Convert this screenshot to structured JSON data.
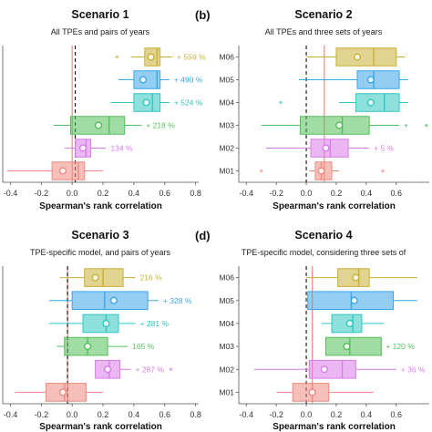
{
  "series_colors": [
    "#f08a80",
    "#da7bea",
    "#52c05a",
    "#2fc7c0",
    "#3aa6e8",
    "#c9b035"
  ],
  "chart_data": [
    {
      "type": "boxplot",
      "panel_label": "",
      "title": "Scenario 1",
      "subtitle": "All TPEs and pairs of years",
      "xlabel": "Spearman's rank correlation",
      "xlim": [
        -0.45,
        0.82
      ],
      "x_ticks": [
        "-0.4",
        "-0.2",
        "0.0",
        "0.2",
        "0.4",
        "0.6",
        "0.8"
      ],
      "y_tick_labels": [],
      "categories": [
        "M01",
        "M02",
        "M03",
        "M04",
        "M05",
        "M06"
      ],
      "reference_line_red": 0.0,
      "reference_line_dashed": 0.02,
      "boxes": [
        {
          "category": "M01",
          "whisker_low": -0.42,
          "q1": -0.13,
          "median": 0.04,
          "q3": 0.08,
          "whisker_high": 0.2,
          "mean": -0.06,
          "outliers": [],
          "annotation": ""
        },
        {
          "category": "M02",
          "whisker_low": -0.05,
          "q1": 0.02,
          "median": 0.09,
          "q3": 0.12,
          "whisker_high": 0.22,
          "mean": 0.07,
          "outliers": [],
          "annotation": "134 %"
        },
        {
          "category": "M03",
          "whisker_low": -0.12,
          "q1": -0.01,
          "median": 0.24,
          "q3": 0.34,
          "whisker_high": 0.45,
          "mean": 0.17,
          "outliers": [],
          "annotation": "+ 218 %"
        },
        {
          "category": "M04",
          "whisker_low": 0.25,
          "q1": 0.4,
          "median": 0.52,
          "q3": 0.57,
          "whisker_high": 0.63,
          "mean": 0.48,
          "outliers": [],
          "annotation": "+ 524 %"
        },
        {
          "category": "M05",
          "whisker_low": 0.3,
          "q1": 0.4,
          "median": 0.55,
          "q3": 0.57,
          "whisker_high": 0.63,
          "mean": 0.46,
          "outliers": [],
          "annotation": "+ 490 %"
        },
        {
          "category": "M06",
          "whisker_low": 0.38,
          "q1": 0.47,
          "median": 0.55,
          "q3": 0.57,
          "whisker_high": 0.65,
          "mean": 0.51,
          "outliers": [
            0.29
          ],
          "annotation": "+ 559 %"
        }
      ]
    },
    {
      "type": "boxplot",
      "panel_label": "(b)",
      "title": "Scenario 2",
      "subtitle": "All TPEs and three sets of years",
      "xlabel": "Spearman's rank correlation",
      "xlim": [
        -0.45,
        0.82
      ],
      "x_ticks": [
        "-0.4",
        "-0.2",
        "0.0",
        "0.2",
        "0.4",
        "0.6"
      ],
      "y_tick_labels": [
        "M01",
        "M02",
        "M03",
        "M04",
        "M05",
        "M06"
      ],
      "categories": [
        "M01",
        "M02",
        "M03",
        "M04",
        "M05",
        "M06"
      ],
      "reference_line_red": 0.12,
      "reference_line_dashed": 0.0,
      "boxes": [
        {
          "category": "M01",
          "whisker_low": 0.02,
          "q1": 0.06,
          "median": 0.1,
          "q3": 0.17,
          "whisker_high": 0.22,
          "mean": 0.1,
          "outliers": [
            -0.3,
            0.51
          ],
          "annotation": ""
        },
        {
          "category": "M02",
          "whisker_low": -0.27,
          "q1": 0.03,
          "median": 0.16,
          "q3": 0.28,
          "whisker_high": 0.42,
          "mean": 0.13,
          "outliers": [],
          "annotation": "+ 5 %"
        },
        {
          "category": "M03",
          "whisker_low": -0.3,
          "q1": -0.04,
          "median": 0.24,
          "q3": 0.42,
          "whisker_high": 0.62,
          "mean": 0.22,
          "outliers": [
            0.8
          ],
          "annotation": "+"
        },
        {
          "category": "M04",
          "whisker_low": 0.22,
          "q1": 0.33,
          "median": 0.52,
          "q3": 0.62,
          "whisker_high": 0.68,
          "mean": 0.43,
          "outliers": [
            -0.17
          ],
          "annotation": ""
        },
        {
          "category": "M05",
          "whisker_low": -0.05,
          "q1": 0.34,
          "median": 0.45,
          "q3": 0.62,
          "whisker_high": 0.68,
          "mean": 0.43,
          "outliers": [],
          "annotation": ""
        },
        {
          "category": "M06",
          "whisker_low": 0.0,
          "q1": 0.2,
          "median": 0.45,
          "q3": 0.6,
          "whisker_high": 0.66,
          "mean": 0.34,
          "outliers": [],
          "annotation": ""
        }
      ]
    },
    {
      "type": "boxplot",
      "panel_label": "",
      "title": "Scenario 3",
      "subtitle": "TPE-specific model, and pairs of years",
      "xlabel": "Spearman's rank correlation",
      "xlim": [
        -0.45,
        0.82
      ],
      "x_ticks": [
        "-0.4",
        "-0.2",
        "0.0",
        "0.2",
        "0.4",
        "0.6",
        "0.8"
      ],
      "y_tick_labels": [],
      "categories": [
        "M01",
        "M02",
        "M03",
        "M04",
        "M05",
        "M06"
      ],
      "reference_line_red": -0.03,
      "reference_line_dashed": -0.03,
      "boxes": [
        {
          "category": "M01",
          "whisker_low": -0.37,
          "q1": -0.17,
          "median": -0.05,
          "q3": 0.09,
          "whisker_high": 0.2,
          "mean": -0.06,
          "outliers": [],
          "annotation": ""
        },
        {
          "category": "M02",
          "whisker_low": 0.15,
          "q1": 0.15,
          "median": 0.24,
          "q3": 0.31,
          "whisker_high": 0.38,
          "mean": 0.23,
          "outliers": [
            0.64
          ],
          "annotation": "+ 287 %"
        },
        {
          "category": "M03",
          "whisker_low": -0.1,
          "q1": -0.05,
          "median": 0.1,
          "q3": 0.23,
          "whisker_high": 0.36,
          "mean": 0.1,
          "outliers": [],
          "annotation": "165 %"
        },
        {
          "category": "M04",
          "whisker_low": -0.15,
          "q1": 0.07,
          "median": 0.22,
          "q3": 0.3,
          "whisker_high": 0.41,
          "mean": 0.22,
          "outliers": [],
          "annotation": "+ 281 %"
        },
        {
          "category": "M05",
          "whisker_low": -0.15,
          "q1": 0.0,
          "median": 0.21,
          "q3": 0.49,
          "whisker_high": 0.56,
          "mean": 0.27,
          "outliers": [],
          "annotation": "+ 328 %"
        },
        {
          "category": "M06",
          "whisker_low": -0.08,
          "q1": 0.08,
          "median": 0.2,
          "q3": 0.33,
          "whisker_high": 0.41,
          "mean": 0.15,
          "outliers": [],
          "annotation": "216 %"
        }
      ]
    },
    {
      "type": "boxplot",
      "panel_label": "(d)",
      "title": "Scenario 4",
      "subtitle": "TPE-specific model, considering three sets of",
      "xlabel": "Spearman's rank correlation",
      "xlim": [
        -0.45,
        0.82
      ],
      "x_ticks": [
        "-0.4",
        "-0.2",
        "0.0",
        "0.2",
        "0.4",
        "0.6"
      ],
      "y_tick_labels": [
        "M01",
        "M02",
        "M03",
        "M04",
        "M05",
        "M06"
      ],
      "categories": [
        "M01",
        "M02",
        "M03",
        "M04",
        "M05",
        "M06"
      ],
      "reference_line_red": 0.04,
      "reference_line_dashed": 0.0,
      "boxes": [
        {
          "category": "M01",
          "whisker_low": -0.2,
          "q1": -0.09,
          "median": 0.04,
          "q3": 0.15,
          "whisker_high": 0.45,
          "mean": 0.04,
          "outliers": [],
          "annotation": ""
        },
        {
          "category": "M02",
          "whisker_low": -0.35,
          "q1": 0.02,
          "median": 0.24,
          "q3": 0.33,
          "whisker_high": 0.6,
          "mean": 0.12,
          "outliers": [],
          "annotation": "+ 36 %"
        },
        {
          "category": "M03",
          "whisker_low": 0.13,
          "q1": 0.13,
          "median": 0.29,
          "q3": 0.5,
          "whisker_high": 0.5,
          "mean": 0.27,
          "outliers": [],
          "annotation": "+ 120 %"
        },
        {
          "category": "M04",
          "whisker_low": 0.1,
          "q1": 0.17,
          "median": 0.31,
          "q3": 0.37,
          "whisker_high": 0.52,
          "mean": 0.29,
          "outliers": [],
          "annotation": ""
        },
        {
          "category": "M05",
          "whisker_low": 0.0,
          "q1": 0.01,
          "median": 0.3,
          "q3": 0.58,
          "whisker_high": 0.74,
          "mean": 0.32,
          "outliers": [],
          "annotation": ""
        },
        {
          "category": "M06",
          "whisker_low": 0.0,
          "q1": 0.21,
          "median": 0.35,
          "q3": 0.42,
          "whisker_high": 0.74,
          "mean": 0.33,
          "outliers": [],
          "annotation": ""
        }
      ]
    }
  ]
}
